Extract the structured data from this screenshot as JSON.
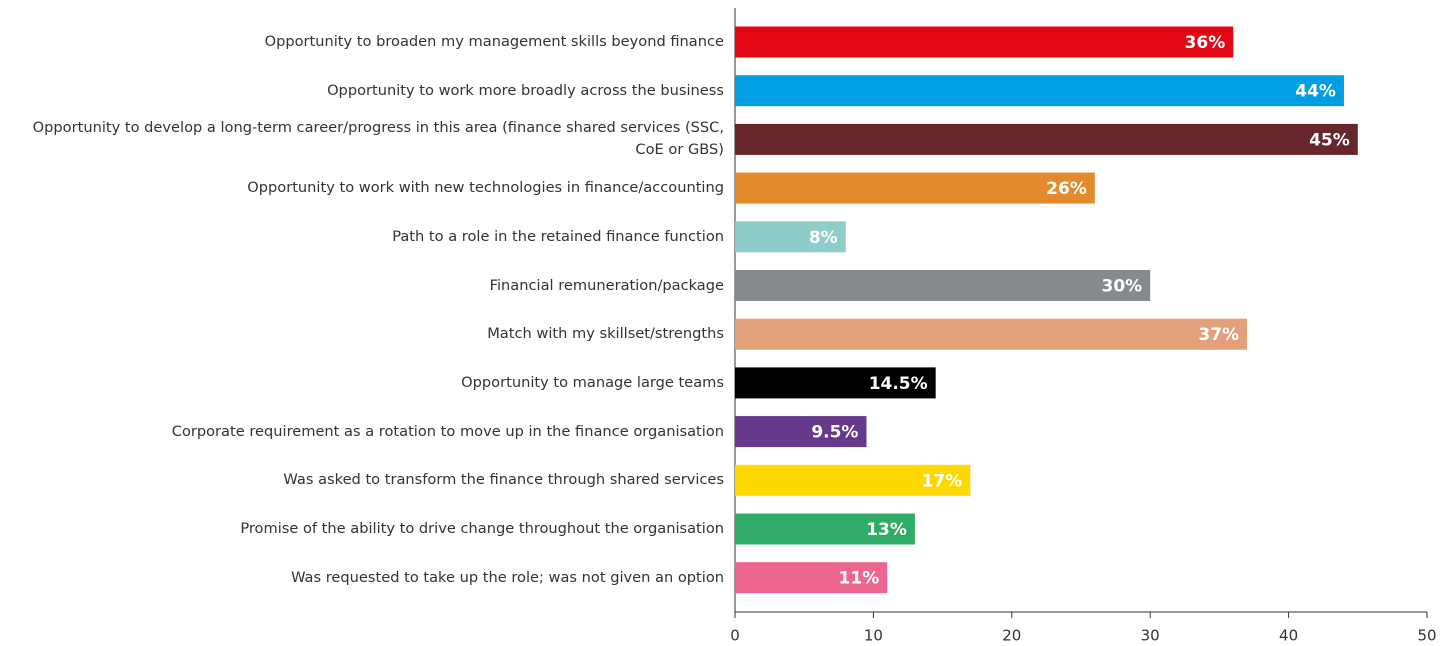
{
  "chart_data": {
    "type": "barh",
    "categories": [
      "Opportunity to broaden my management skills beyond finance",
      "Opportunity to work more broadly across the business",
      "Opportunity to develop a long-term career/progress in this area (finance shared services (SSC, CoE or GBS)",
      "Opportunity to work with new technologies in finance/accounting",
      "Path to a role in the retained finance function",
      "Financial remuneration/package",
      "Match with my skillset/strengths",
      "Opportunity to manage large teams",
      "Corporate requirement as a rotation to move up in the finance organisation",
      "Was asked to transform the finance through shared services",
      "Promise of the ability to drive change throughout the organisation",
      "Was requested to take up the role; was not given an option"
    ],
    "values": [
      36,
      44,
      45,
      26,
      8,
      30,
      37,
      14.5,
      9.5,
      17,
      13,
      11
    ],
    "value_labels": [
      "36%",
      "44%",
      "45%",
      "26%",
      "8%",
      "30%",
      "37%",
      "14.5%",
      "9.5%",
      "17%",
      "13%",
      "11%"
    ],
    "colors": [
      "#e30613",
      "#009fe3",
      "#66262c",
      "#e38b2c",
      "#8ecdc8",
      "#878a8c",
      "#e3a07a",
      "#000000",
      "#653a8b",
      "#ffd800",
      "#2fad66",
      "#ec6690"
    ],
    "xlim": [
      0,
      50
    ],
    "xticks": [
      0,
      10,
      20,
      30,
      40,
      50
    ],
    "grid": false
  }
}
